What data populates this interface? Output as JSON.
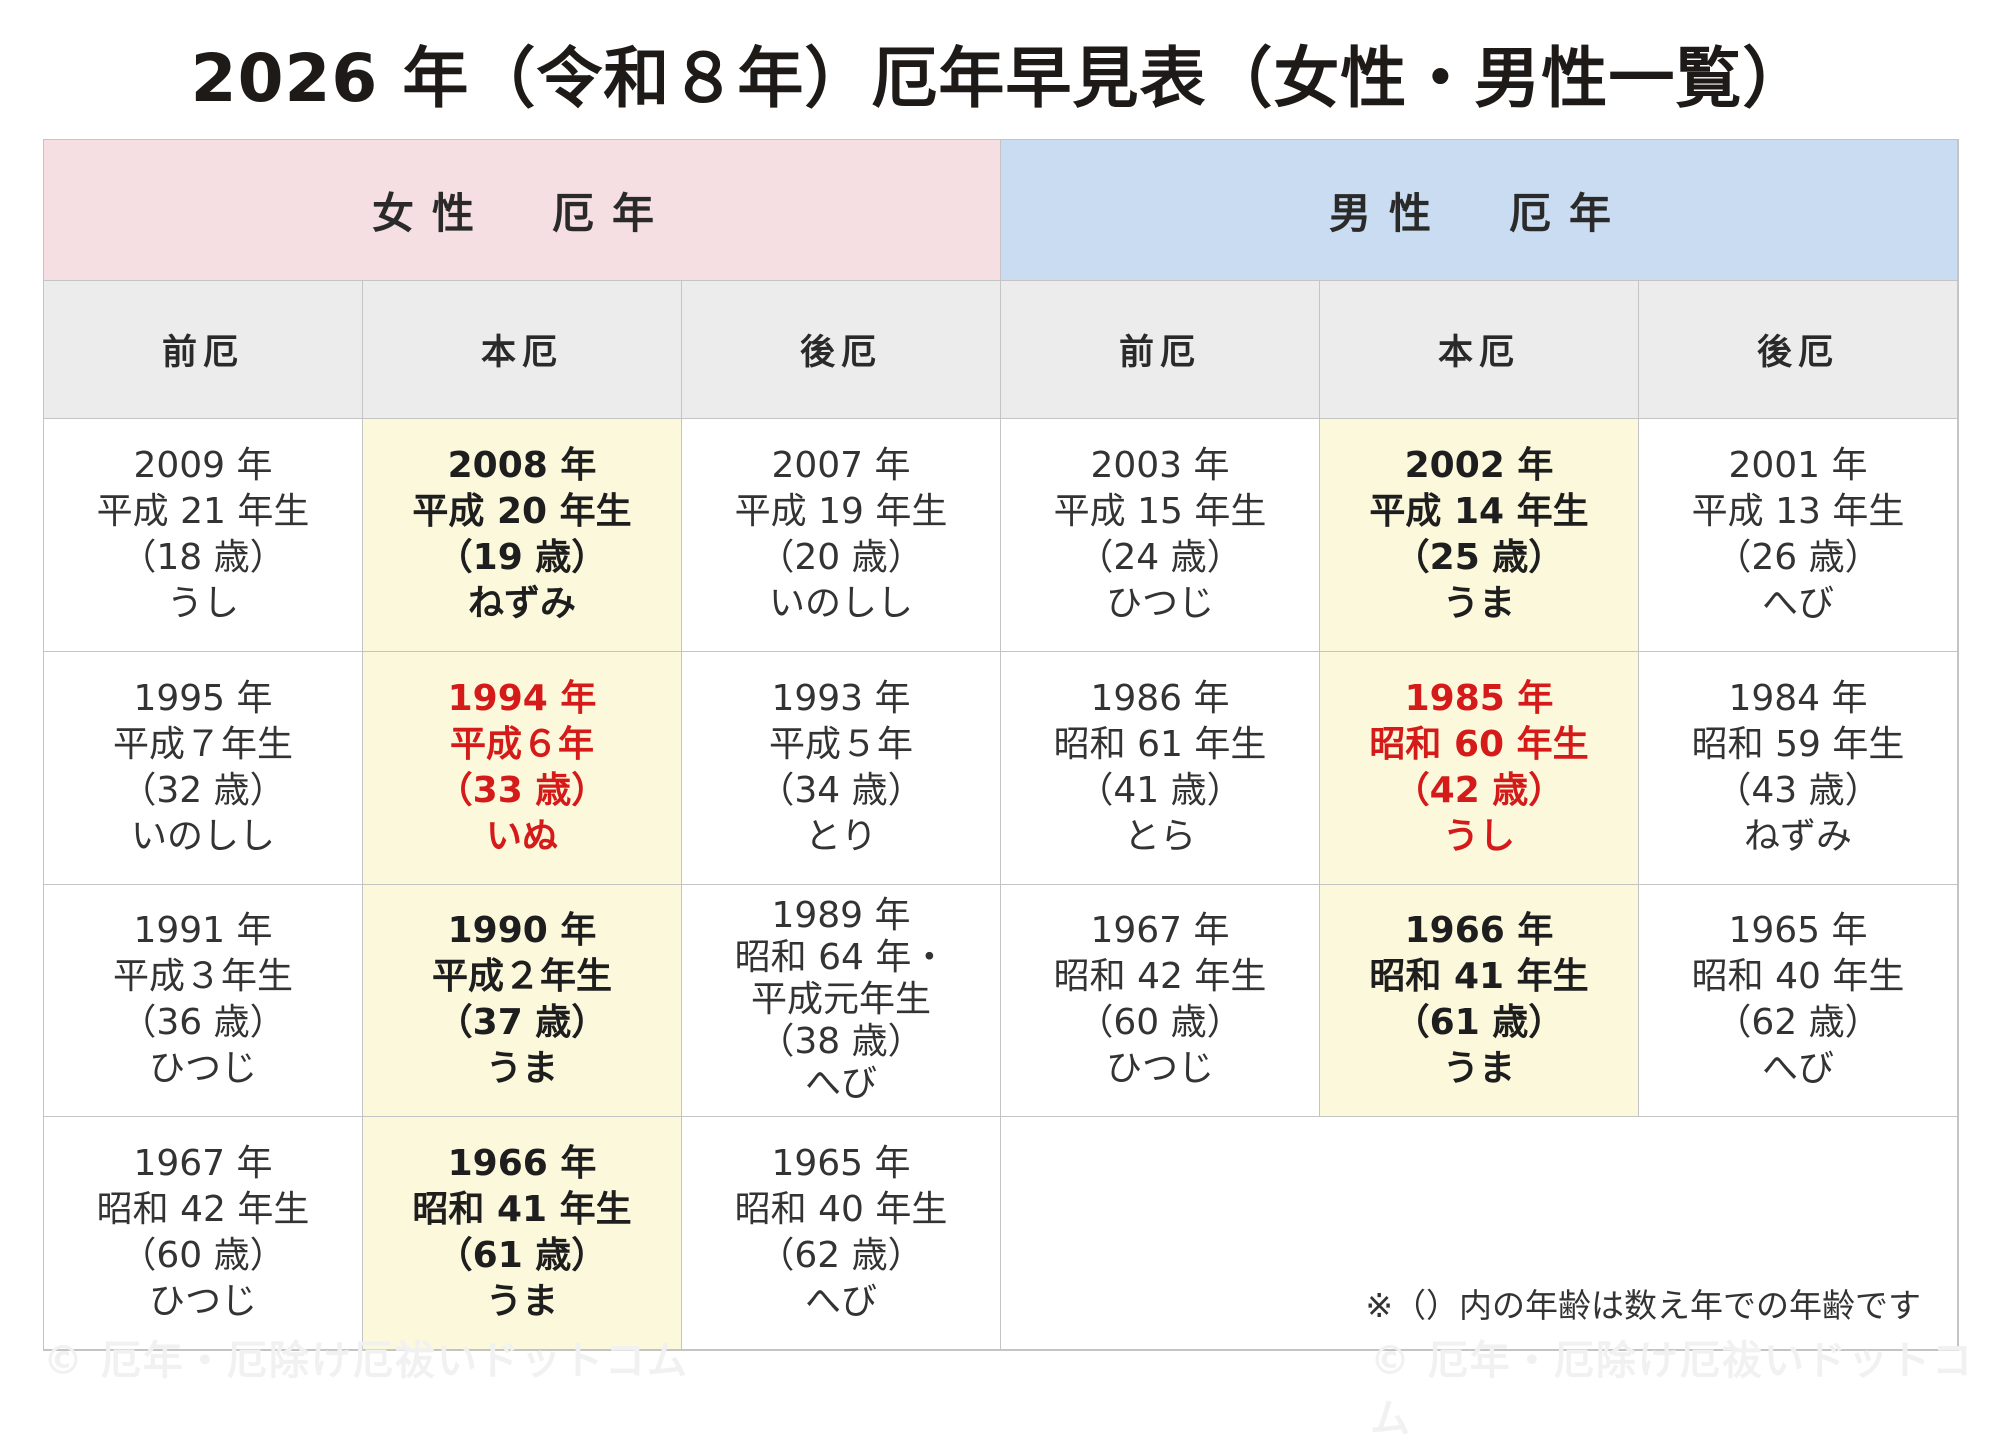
{
  "title": "2026 年（令和８年）厄年早見表（女性・男性一覧）",
  "headers": {
    "female": "女性　厄年",
    "male": "男性　厄年"
  },
  "subheaders": [
    "前厄",
    "本厄",
    "後厄",
    "前厄",
    "本厄",
    "後厄"
  ],
  "rows": [
    [
      {
        "lines": [
          "2009 年",
          "平成 21 年生",
          "（18 歳）",
          "うし"
        ],
        "type": "normal"
      },
      {
        "lines": [
          "2008 年",
          "平成 20 年生",
          "（19 歳）",
          "ねずみ"
        ],
        "type": "hon"
      },
      {
        "lines": [
          "2007 年",
          "平成 19 年生",
          "（20 歳）",
          "いのしし"
        ],
        "type": "normal"
      },
      {
        "lines": [
          "2003 年",
          "平成 15 年生",
          "（24 歳）",
          "ひつじ"
        ],
        "type": "normal"
      },
      {
        "lines": [
          "2002 年",
          "平成 14 年生",
          "（25 歳）",
          "うま"
        ],
        "type": "hon"
      },
      {
        "lines": [
          "2001 年",
          "平成 13 年生",
          "（26 歳）",
          "へび"
        ],
        "type": "normal"
      }
    ],
    [
      {
        "lines": [
          "1995 年",
          "平成７年生",
          "（32 歳）",
          "いのしし"
        ],
        "type": "normal"
      },
      {
        "lines": [
          "1994 年",
          "平成６年",
          "（33 歳）",
          "いぬ"
        ],
        "type": "hon-red"
      },
      {
        "lines": [
          "1993 年",
          "平成５年",
          "（34 歳）",
          "とり"
        ],
        "type": "normal"
      },
      {
        "lines": [
          "1986 年",
          "昭和 61 年生",
          "（41 歳）",
          "とら"
        ],
        "type": "normal"
      },
      {
        "lines": [
          "1985 年",
          "昭和 60 年生",
          "（42 歳）",
          "うし"
        ],
        "type": "hon-red"
      },
      {
        "lines": [
          "1984 年",
          "昭和 59 年生",
          "（43 歳）",
          "ねずみ"
        ],
        "type": "normal"
      }
    ],
    [
      {
        "lines": [
          "1991 年",
          "平成３年生",
          "（36 歳）",
          "ひつじ"
        ],
        "type": "normal"
      },
      {
        "lines": [
          "1990 年",
          "平成２年生",
          "（37 歳）",
          "うま"
        ],
        "type": "hon"
      },
      {
        "lines": [
          "1989 年",
          "昭和 64 年・",
          "平成元年生",
          "（38 歳）",
          "へび"
        ],
        "type": "normal"
      },
      {
        "lines": [
          "1967 年",
          "昭和 42 年生",
          "（60 歳）",
          "ひつじ"
        ],
        "type": "normal"
      },
      {
        "lines": [
          "1966 年",
          "昭和 41 年生",
          "（61 歳）",
          "うま"
        ],
        "type": "hon"
      },
      {
        "lines": [
          "1965 年",
          "昭和 40 年生",
          "（62 歳）",
          "へび"
        ],
        "type": "normal"
      }
    ],
    [
      {
        "lines": [
          "1967 年",
          "昭和 42 年生",
          "（60 歳）",
          "ひつじ"
        ],
        "type": "normal"
      },
      {
        "lines": [
          "1966 年",
          "昭和 41 年生",
          "（61 歳）",
          "うま"
        ],
        "type": "hon"
      },
      {
        "lines": [
          "1965 年",
          "昭和 40 年生",
          "（62 歳）",
          "へび"
        ],
        "type": "normal"
      }
    ]
  ],
  "note": "※（）内の年齢は数え年での年齢です",
  "watermarks": [
    "© 厄年・厄除け厄祓いドットコム",
    "© 厄年・厄除け厄祓いドットコム"
  ],
  "colors": {
    "female_header": "#f6dfe2",
    "male_header": "#c9dcf1",
    "subheader": "#ececec",
    "honyaku_bg": "#fbf8dc",
    "highlight_red": "#d51a1a"
  }
}
